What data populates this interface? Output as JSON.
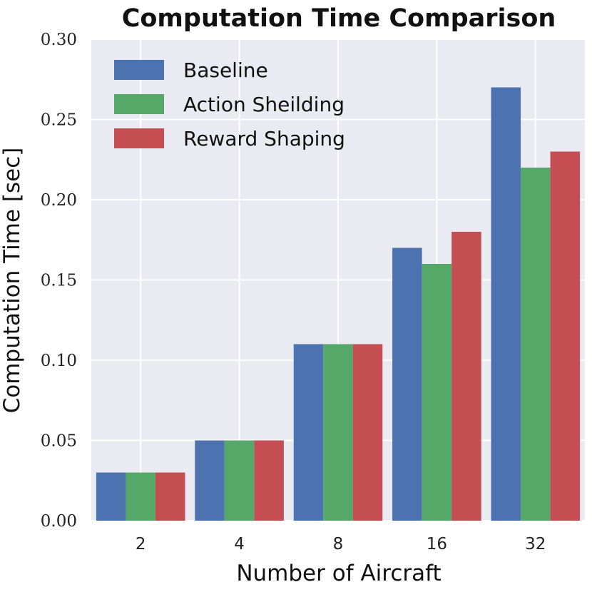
{
  "chart_data": {
    "type": "bar",
    "title": "Computation Time Comparison",
    "xlabel": "Number of Aircraft",
    "ylabel": "Computation Time [sec]",
    "categories": [
      "2",
      "4",
      "8",
      "16",
      "32"
    ],
    "ylim": [
      0,
      0.3
    ],
    "yticks": [
      "0.00",
      "0.05",
      "0.10",
      "0.15",
      "0.20",
      "0.25",
      "0.30"
    ],
    "grid": true,
    "legend_position": "top-left",
    "series": [
      {
        "name": "Baseline",
        "color": "#4c72b0",
        "values": [
          0.03,
          0.05,
          0.11,
          0.17,
          0.27
        ]
      },
      {
        "name": "Action Sheilding",
        "color": "#55a868",
        "values": [
          0.03,
          0.05,
          0.11,
          0.16,
          0.22
        ]
      },
      {
        "name": "Reward Shaping",
        "color": "#c44e52",
        "values": [
          0.03,
          0.05,
          0.11,
          0.18,
          0.23
        ]
      }
    ]
  }
}
